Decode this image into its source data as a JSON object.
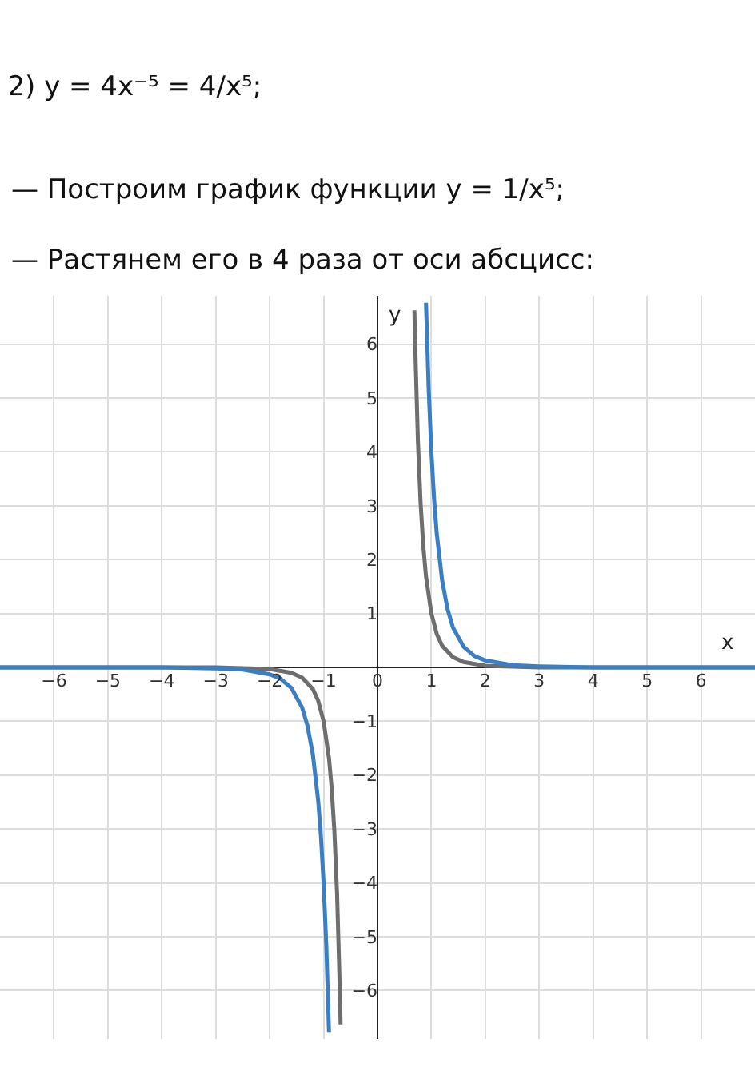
{
  "chart_data": {
    "type": "line",
    "title": "2) y = 4x⁻⁵ = 4/x⁵;",
    "subtitle": "— Построим график функции y = 1/x⁵;\n— Растянем его в 4 раза от оси абсцисс:",
    "xlabel": "x",
    "ylabel": "y",
    "series": [
      {
        "color": "#6e6e6e",
        "x": [
          -7,
          -4,
          -3,
          -2,
          -1.6,
          -1.4,
          -1.2,
          -1.1,
          -1,
          -0.9,
          -0.85,
          -0.8,
          -0.75,
          -0.7,
          -0.685,
          null,
          0.685,
          0.7,
          0.75,
          0.8,
          0.85,
          0.9,
          1,
          1.1,
          1.2,
          1.4,
          1.6,
          2,
          3,
          4,
          7
        ],
        "values": [
          0,
          0,
          0,
          -0.03,
          -0.1,
          -0.19,
          -0.4,
          -0.62,
          -1,
          -1.69,
          -2.25,
          -3.05,
          -4.21,
          -5.95,
          -6.63,
          null,
          6.63,
          5.95,
          4.21,
          3.05,
          2.25,
          1.69,
          1,
          0.62,
          0.4,
          0.19,
          0.1,
          0.03,
          0,
          0,
          0
        ]
      },
      {
        "color": "#3a7fc4",
        "x": [
          -7,
          -5,
          -4,
          -3,
          -2.5,
          -2,
          -1.8,
          -1.6,
          -1.4,
          -1.3,
          -1.2,
          -1.1,
          -1.05,
          -1,
          -0.95,
          -0.9,
          null,
          0.9,
          0.95,
          1,
          1.05,
          1.1,
          1.2,
          1.3,
          1.4,
          1.6,
          1.8,
          2,
          2.5,
          3,
          4,
          5,
          7
        ],
        "values": [
          0,
          0,
          0,
          -0.02,
          -0.04,
          -0.13,
          -0.21,
          -0.38,
          -0.74,
          -1.08,
          -1.61,
          -2.48,
          -3.13,
          -4,
          -5.17,
          -6.77,
          null,
          6.77,
          5.17,
          4,
          3.13,
          2.48,
          1.61,
          1.08,
          0.74,
          0.38,
          0.21,
          0.13,
          0.04,
          0.02,
          0,
          0,
          0
        ]
      }
    ],
    "xlim": [
      -7,
      7
    ],
    "ylim": [
      -6.9,
      6.9
    ],
    "xticks": [
      -6,
      -5,
      -4,
      -3,
      -2,
      -1,
      0,
      1,
      2,
      3,
      4,
      5,
      6
    ],
    "yticks": [
      -6,
      -5,
      -4,
      -3,
      -2,
      -1,
      {
        "value": 0,
        "label": null
      },
      1,
      2,
      3,
      4,
      5,
      6
    ],
    "grid": true,
    "line_style": "solid",
    "marker": "none"
  }
}
